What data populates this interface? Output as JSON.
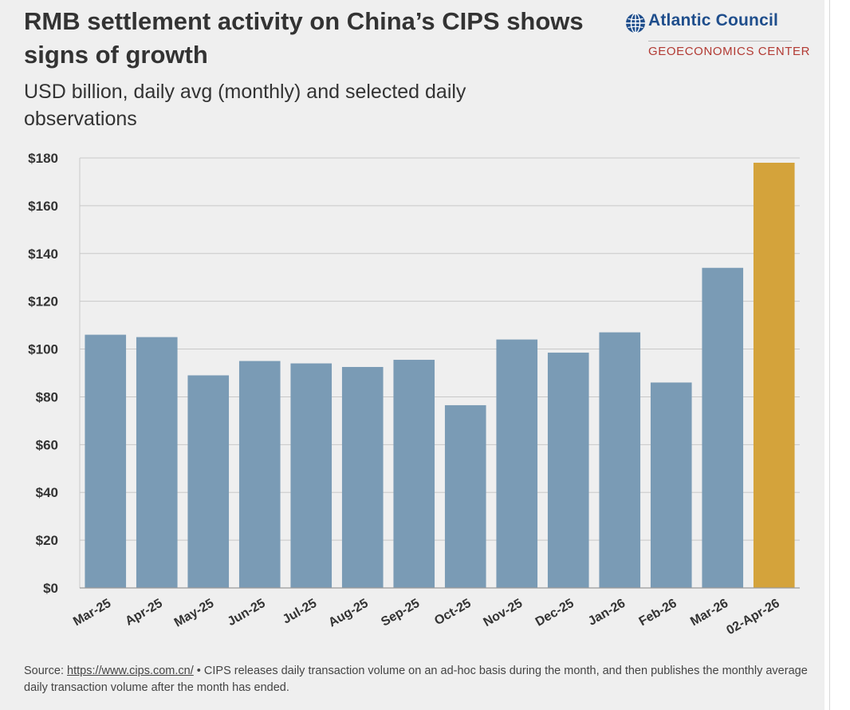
{
  "header": {
    "title": "RMB settlement activity on China’s CIPS shows signs of growth",
    "subtitle": "USD billion, daily avg (monthly) and selected daily observations"
  },
  "logo": {
    "name": "Atlantic Council",
    "center": "GEOECONOMICS CENTER",
    "icon": "globe-icon"
  },
  "chart_data": {
    "type": "bar",
    "title": "RMB settlement activity on China’s CIPS shows signs of growth",
    "subtitle": "USD billion, daily avg (monthly) and selected daily observations",
    "categories": [
      "Mar-25",
      "Apr-25",
      "May-25",
      "Jun-25",
      "Jul-25",
      "Aug-25",
      "Sep-25",
      "Oct-25",
      "Nov-25",
      "Dec-25",
      "Jan-26",
      "Feb-26",
      "Mar-26",
      "02-Apr-26"
    ],
    "values": [
      106,
      105,
      89,
      95,
      94,
      92.5,
      95.5,
      76.5,
      104,
      98.5,
      107,
      86,
      134,
      178
    ],
    "bar_colors": [
      "#7a9bb5",
      "#7a9bb5",
      "#7a9bb5",
      "#7a9bb5",
      "#7a9bb5",
      "#7a9bb5",
      "#7a9bb5",
      "#7a9bb5",
      "#7a9bb5",
      "#7a9bb5",
      "#7a9bb5",
      "#7a9bb5",
      "#7a9bb5",
      "#d4a33b"
    ],
    "yticks": [
      "$0",
      "$20",
      "$40",
      "$60",
      "$80",
      "$100",
      "$120",
      "$140",
      "$160",
      "$180"
    ],
    "ylim": [
      0,
      180
    ],
    "grid": true,
    "xlabel": "",
    "ylabel": ""
  },
  "footnote": {
    "source_label": "Source:",
    "source_url": "https://www.cips.com.cn/",
    "note": "• CIPS releases daily transaction volume on an ad-hoc basis during the month, and then publishes the monthly average daily transaction volume after the month has ended."
  }
}
